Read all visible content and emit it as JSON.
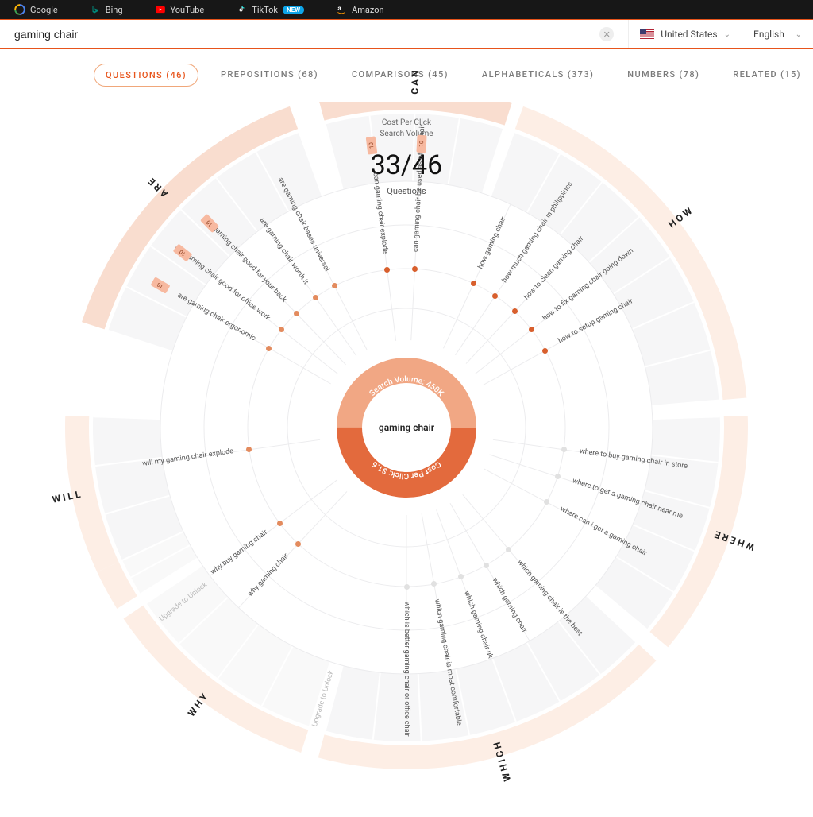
{
  "topbar": {
    "items": [
      {
        "label": "Google",
        "icon": "google"
      },
      {
        "label": "Bing",
        "icon": "bing"
      },
      {
        "label": "YouTube",
        "icon": "youtube"
      },
      {
        "label": "TikTok",
        "icon": "tiktok",
        "badge": "NEW"
      },
      {
        "label": "Amazon",
        "icon": "amazon"
      }
    ]
  },
  "search": {
    "value": "gaming chair",
    "region": "United States",
    "language": "English"
  },
  "tabs": [
    {
      "label": "QUESTIONS (46)",
      "active": true
    },
    {
      "label": "PREPOSITIONS (68)"
    },
    {
      "label": "COMPARISONS (45)"
    },
    {
      "label": "ALPHABETICALS (373)"
    },
    {
      "label": "NUMBERS (78)"
    },
    {
      "label": "RELATED (15)"
    }
  ],
  "center": {
    "line1": "Cost Per Click",
    "line2": "Search Volume",
    "count": "33/46",
    "count_label": "Questions"
  },
  "donut": {
    "center_label": "gaming chair",
    "top_text": "Search Volume: 450K",
    "bottom_text": "Cost Per Click: $1.6",
    "top_color": "#f1a784",
    "bottom_color": "#e36a3d",
    "thickness": 32
  },
  "wheel": {
    "outer_radius": 420,
    "ring_outer": 430,
    "ring_inner": 400,
    "band_outer": 395,
    "band_inner": 310,
    "spoke_label_radius": 310,
    "spoke_dot_radius": 200,
    "arc_color_light": "#fdeee5",
    "arc_color_mid": "#f9ddcf",
    "band_color": "#f6f6f7",
    "grid_color": "#ececee",
    "section_gap_deg": 3
  },
  "sections": [
    {
      "name": "WILL",
      "start": -115,
      "end": -88,
      "locked": false
    },
    {
      "name": "ARE",
      "start": -72,
      "end": -20,
      "highlight": true,
      "locked": false
    },
    {
      "name": "CAN",
      "start": -15,
      "end": 18,
      "highlight": true,
      "locked": false
    },
    {
      "name": "HOW",
      "start": 20,
      "end": 85,
      "locked": false
    },
    {
      "name": "WHERE",
      "start": 88,
      "end": 130,
      "locked": false
    },
    {
      "name": "WHICH",
      "start": 133,
      "end": 195,
      "locked": false
    },
    {
      "name": "WHY",
      "start": 198,
      "end": 236,
      "locked": true
    },
    {
      "name": "WILL2",
      "start": 238,
      "end": 245,
      "locked": true,
      "hide_label": true
    }
  ],
  "spokes": [
    {
      "angle": -98,
      "text": "will my gaming chair explode",
      "dot": "#e38b5e"
    },
    {
      "angle": -60,
      "text": "are gaming chair ergonomic",
      "dot": "#e38b5e",
      "badge": "10"
    },
    {
      "angle": -52,
      "text": "are gaming chair good for office work",
      "dot": "#e38b5e",
      "badge": "10"
    },
    {
      "angle": -44,
      "text": "are gaming chair good for your back",
      "dot": "#e38b5e",
      "badge": "10"
    },
    {
      "angle": -35,
      "text": "are gaming chair worth it",
      "dot": "#e38b5e"
    },
    {
      "angle": -27,
      "text": "are gaming chair bases universal",
      "dot": "#e38b5e"
    },
    {
      "angle": -7,
      "text": "can gaming chair explode",
      "dot": "#d85f2d",
      "badge": "10"
    },
    {
      "angle": 3,
      "text": "can gaming chair be used as office chair",
      "dot": "#d85f2d",
      "badge": "10"
    },
    {
      "angle": 25,
      "text": "how gaming chair",
      "dot": "#d85f2d"
    },
    {
      "angle": 34,
      "text": "how much gaming chair in philippines",
      "dot": "#d85f2d"
    },
    {
      "angle": 43,
      "text": "how to clean gaming chair",
      "dot": "#d85f2d"
    },
    {
      "angle": 52,
      "text": "how to fix gaming chair going down",
      "dot": "#d85f2d"
    },
    {
      "angle": 61,
      "text": "how to setup gaming chair",
      "dot": "#d85f2d"
    },
    {
      "angle": 98,
      "text": "where to buy gaming chair in store",
      "dot": "#e1e1e1"
    },
    {
      "angle": 108,
      "text": "where to get a gaming chair near me",
      "dot": "#e1e1e1"
    },
    {
      "angle": 118,
      "text": "where can i get a gaming chair",
      "dot": "#e1e1e1"
    },
    {
      "angle": 140,
      "text": "which gaming chair is the best",
      "dot": "#e1e1e1"
    },
    {
      "angle": 150,
      "text": "which gaming chair",
      "dot": "#e1e1e1"
    },
    {
      "angle": 160,
      "text": "which gaming chair uk",
      "dot": "#e1e1e1"
    },
    {
      "angle": 170,
      "text": "which gaming chair is most comfortable",
      "dot": "#e1e1e1"
    },
    {
      "angle": 180,
      "text": "which is better gaming chair or office chair",
      "dot": "#e1e1e1"
    },
    {
      "angle": 223,
      "text": "why gaming chair",
      "dot": "#e38b5e"
    },
    {
      "angle": 233,
      "text": "why buy gaming chair",
      "dot": "#e38b5e"
    }
  ],
  "upgrades": [
    {
      "angle": 197,
      "text": "Upgrade to Unlock"
    },
    {
      "angle": 232,
      "text": "Upgrade to Unlock"
    }
  ],
  "colors": {
    "accent": "#e7541b",
    "text_muted": "#7a7a7a"
  }
}
